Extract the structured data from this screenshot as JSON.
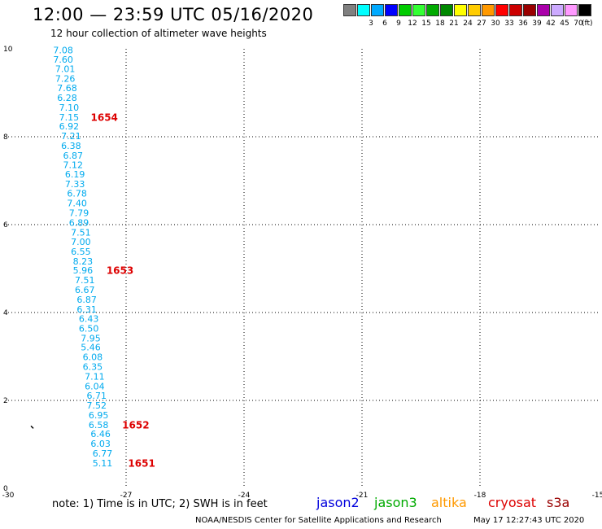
{
  "header": {
    "title": "12:00 — 23:59 UTC 05/16/2020",
    "subtitle": "12 hour collection of altimeter wave heights"
  },
  "legend": {
    "unit": "(ft)",
    "swatches": [
      {
        "label": "",
        "color": "#808080"
      },
      {
        "label": "3",
        "color": "#00ffff"
      },
      {
        "label": "6",
        "color": "#00aaff"
      },
      {
        "label": "9",
        "color": "#0000ff"
      },
      {
        "label": "12",
        "color": "#00cc00"
      },
      {
        "label": "15",
        "color": "#33ff33"
      },
      {
        "label": "18",
        "color": "#00aa00"
      },
      {
        "label": "21",
        "color": "#008800"
      },
      {
        "label": "24",
        "color": "#ffff00"
      },
      {
        "label": "27",
        "color": "#ffcc00"
      },
      {
        "label": "30",
        "color": "#ff9900"
      },
      {
        "label": "33",
        "color": "#ff0000"
      },
      {
        "label": "36",
        "color": "#cc0000"
      },
      {
        "label": "39",
        "color": "#990000"
      },
      {
        "label": "42",
        "color": "#aa00aa"
      },
      {
        "label": "45",
        "color": "#ccaaff"
      },
      {
        "label": "70",
        "color": "#ff99ff"
      },
      {
        "label": "",
        "color": "#000000"
      }
    ]
  },
  "chart_data": {
    "type": "scatter",
    "xlim": [
      -30,
      -15
    ],
    "ylim": [
      0,
      10
    ],
    "xticks": [
      "-30",
      "-27",
      "-24",
      "-21",
      "-18",
      "-15"
    ],
    "yticks": [
      "0",
      "2",
      "4",
      "6",
      "8",
      "10"
    ],
    "grid": true,
    "point_color": "#00aaee",
    "time_color": "#dd0000",
    "wave_heights": [
      {
        "x": -28.6,
        "y": 9.95,
        "label": "7.08"
      },
      {
        "x": -28.6,
        "y": 9.74,
        "label": "7.60"
      },
      {
        "x": -28.55,
        "y": 9.53,
        "label": "7.01"
      },
      {
        "x": -28.55,
        "y": 9.31,
        "label": "7.26"
      },
      {
        "x": -28.5,
        "y": 9.09,
        "label": "7.68"
      },
      {
        "x": -28.5,
        "y": 8.87,
        "label": "6.28"
      },
      {
        "x": -28.45,
        "y": 8.65,
        "label": "7.10"
      },
      {
        "x": -28.45,
        "y": 8.43,
        "label": "7.15"
      },
      {
        "x": -28.45,
        "y": 8.22,
        "label": "6.92"
      },
      {
        "x": -28.4,
        "y": 8.0,
        "label": "7.21"
      },
      {
        "x": -28.4,
        "y": 7.78,
        "label": "6.38"
      },
      {
        "x": -28.35,
        "y": 7.56,
        "label": "6.87"
      },
      {
        "x": -28.35,
        "y": 7.34,
        "label": "7.12"
      },
      {
        "x": -28.3,
        "y": 7.13,
        "label": "6.19"
      },
      {
        "x": -28.3,
        "y": 6.91,
        "label": "7.33"
      },
      {
        "x": -28.25,
        "y": 6.69,
        "label": "6.78"
      },
      {
        "x": -28.25,
        "y": 6.47,
        "label": "7.40"
      },
      {
        "x": -28.2,
        "y": 6.25,
        "label": "7.79"
      },
      {
        "x": -28.2,
        "y": 6.03,
        "label": "6.89"
      },
      {
        "x": -28.15,
        "y": 5.81,
        "label": "7.51"
      },
      {
        "x": -28.15,
        "y": 5.59,
        "label": "7.00"
      },
      {
        "x": -28.15,
        "y": 5.37,
        "label": "6.55"
      },
      {
        "x": -28.1,
        "y": 5.15,
        "label": "8.23"
      },
      {
        "x": -28.1,
        "y": 4.94,
        "label": "5.96"
      },
      {
        "x": -28.05,
        "y": 4.72,
        "label": "7.51"
      },
      {
        "x": -28.05,
        "y": 4.5,
        "label": "6.67"
      },
      {
        "x": -28.0,
        "y": 4.28,
        "label": "6.87"
      },
      {
        "x": -28.0,
        "y": 4.06,
        "label": "6.31"
      },
      {
        "x": -27.95,
        "y": 3.84,
        "label": "6.43"
      },
      {
        "x": -27.95,
        "y": 3.62,
        "label": "6.50"
      },
      {
        "x": -27.9,
        "y": 3.4,
        "label": "7.95"
      },
      {
        "x": -27.9,
        "y": 3.19,
        "label": "5.46"
      },
      {
        "x": -27.85,
        "y": 2.97,
        "label": "6.08"
      },
      {
        "x": -27.85,
        "y": 2.75,
        "label": "6.35"
      },
      {
        "x": -27.8,
        "y": 2.53,
        "label": "7.11"
      },
      {
        "x": -27.8,
        "y": 2.31,
        "label": "6.04"
      },
      {
        "x": -27.75,
        "y": 2.09,
        "label": "6.71"
      },
      {
        "x": -27.75,
        "y": 1.87,
        "label": "7.52"
      },
      {
        "x": -27.7,
        "y": 1.65,
        "label": "6.95"
      },
      {
        "x": -27.7,
        "y": 1.43,
        "label": "6.58"
      },
      {
        "x": -27.65,
        "y": 1.22,
        "label": "6.46"
      },
      {
        "x": -27.65,
        "y": 1.0,
        "label": "6.03"
      },
      {
        "x": -27.6,
        "y": 0.78,
        "label": "6.77"
      },
      {
        "x": -27.6,
        "y": 0.56,
        "label": "5.11"
      }
    ],
    "time_labels": [
      {
        "x": -27.9,
        "y": 8.43,
        "label": "1654"
      },
      {
        "x": -27.5,
        "y": 4.94,
        "label": "1653"
      },
      {
        "x": -27.1,
        "y": 1.43,
        "label": "1652"
      },
      {
        "x": -26.95,
        "y": 0.56,
        "label": "1651"
      }
    ],
    "markers": [
      {
        "x": -29.4,
        "y": 1.4
      }
    ]
  },
  "footer": {
    "note": "note: 1) Time is in UTC; 2) SWH is in feet",
    "satellites": [
      {
        "name": "jason2",
        "color": "#0000dd"
      },
      {
        "name": "jason3",
        "color": "#00aa00"
      },
      {
        "name": "altika",
        "color": "#ff9900"
      },
      {
        "name": "cryosat",
        "color": "#dd0000"
      },
      {
        "name": "s3a",
        "color": "#990000"
      }
    ],
    "credit": "NOAA/NESDIS Center for Satellite Applications and Research",
    "timestamp": "May 17 12:27:43 UTC 2020"
  }
}
